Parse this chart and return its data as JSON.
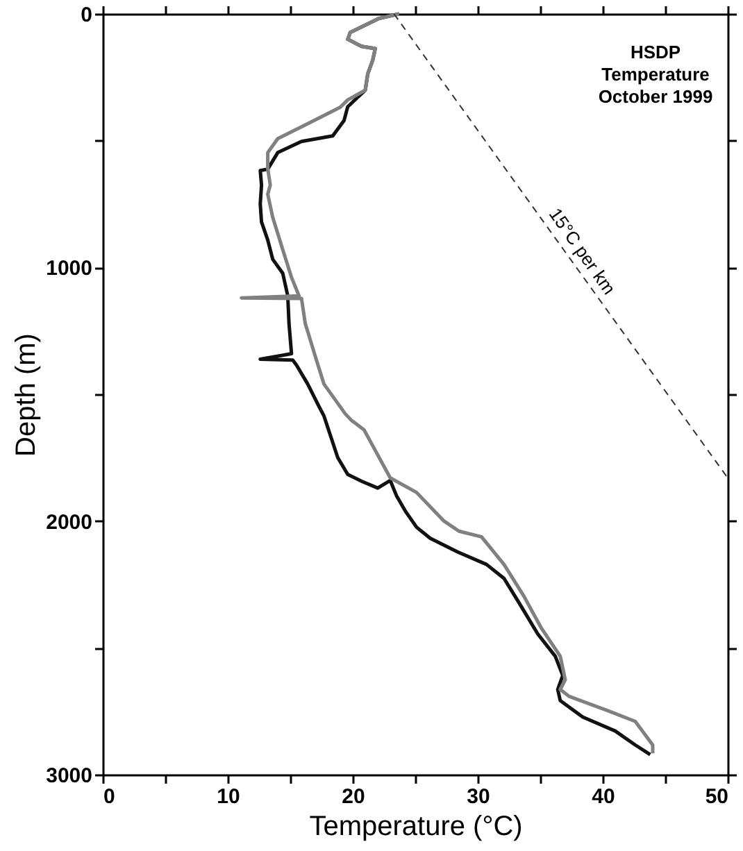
{
  "chart_data": {
    "type": "line",
    "title": "HSDP\nTemperature\nOctober 1999",
    "xlabel": "Temperature (°C)",
    "ylabel": "Depth (m)",
    "xlim": [
      0,
      50
    ],
    "xticks": [
      0,
      {
        "value": 5,
        "label": null
      },
      10,
      {
        "value": 15,
        "label": null
      },
      20,
      {
        "value": 25,
        "label": null
      },
      30,
      {
        "value": 35,
        "label": null
      },
      40,
      {
        "value": 45,
        "label": null
      },
      50
    ],
    "ylim": [
      3000,
      0
    ],
    "yticks": [
      0,
      {
        "value": 500,
        "label": null
      },
      1000,
      {
        "value": 1500,
        "label": null
      },
      2000,
      {
        "value": 2500,
        "label": null
      },
      3000
    ],
    "grid": false,
    "legend": false,
    "line_style": "solid",
    "marker": "none",
    "series": [
      {
        "color": "#111111",
        "x": [
          23.7,
          22.1,
          19.8,
          19.6,
          20.7,
          21.8,
          21.6,
          21.2,
          21.0,
          19.6,
          19.3,
          18.4,
          15.9,
          14.0,
          13.2,
          12.6,
          12.7,
          12.6,
          12.7,
          13.2,
          13.6,
          14.4,
          14.8,
          14.9,
          15.1,
          12.6,
          15.2,
          15.5,
          16.4,
          17.3,
          17.7,
          18.8,
          19.6,
          20.7,
          22.0,
          23.0,
          23.5,
          24.2,
          25.1,
          26.2,
          28.4,
          30.7,
          32.1,
          33.2,
          34.8,
          36.2,
          36.8,
          36.4,
          36.6,
          38.4,
          41.0,
          42.6,
          43.8
        ],
        "values": [
          0,
          18,
          73,
          100,
          128,
          137,
          182,
          237,
          301,
          366,
          421,
          481,
          503,
          547,
          612,
          618,
          675,
          749,
          820,
          892,
          968,
          1023,
          1112,
          1221,
          1340,
          1362,
          1365,
          1385,
          1460,
          1548,
          1586,
          1750,
          1816,
          1843,
          1870,
          1840,
          1900,
          1960,
          2024,
          2068,
          2122,
          2171,
          2226,
          2314,
          2445,
          2533,
          2609,
          2664,
          2708,
          2773,
          2828,
          2883,
          2921
        ]
      },
      {
        "color": "#808080",
        "x": [
          23.7,
          22.1,
          19.8,
          19.6,
          20.7,
          21.8,
          21.6,
          21.2,
          21.0,
          19.6,
          19.0,
          16.2,
          14.0,
          13.2,
          13.2,
          13.4,
          13.2,
          13.6,
          14.4,
          15.1,
          15.7,
          11.1,
          15.9,
          16.2,
          17.0,
          17.7,
          19.4,
          19.9,
          20.9,
          23.0,
          25.1,
          27.3,
          28.5,
          30.3,
          32.1,
          33.7,
          35.1,
          36.6,
          37.0,
          36.6,
          37.3,
          40.3,
          42.6,
          44.0,
          44.0
        ],
        "values": [
          0,
          18,
          73,
          100,
          128,
          137,
          182,
          237,
          301,
          339,
          368,
          438,
          492,
          547,
          610,
          675,
          711,
          803,
          930,
          1039,
          1112,
          1120,
          1122,
          1221,
          1350,
          1460,
          1577,
          1603,
          1640,
          1830,
          1887,
          2000,
          2040,
          2062,
          2171,
          2297,
          2423,
          2533,
          2626,
          2664,
          2691,
          2746,
          2790,
          2883,
          2916
        ]
      },
      {
        "name": "15°C per km",
        "color": "#333333",
        "line_style": "dashed",
        "x": [
          23.3,
          50
        ],
        "values": [
          0,
          1830
        ]
      }
    ]
  }
}
